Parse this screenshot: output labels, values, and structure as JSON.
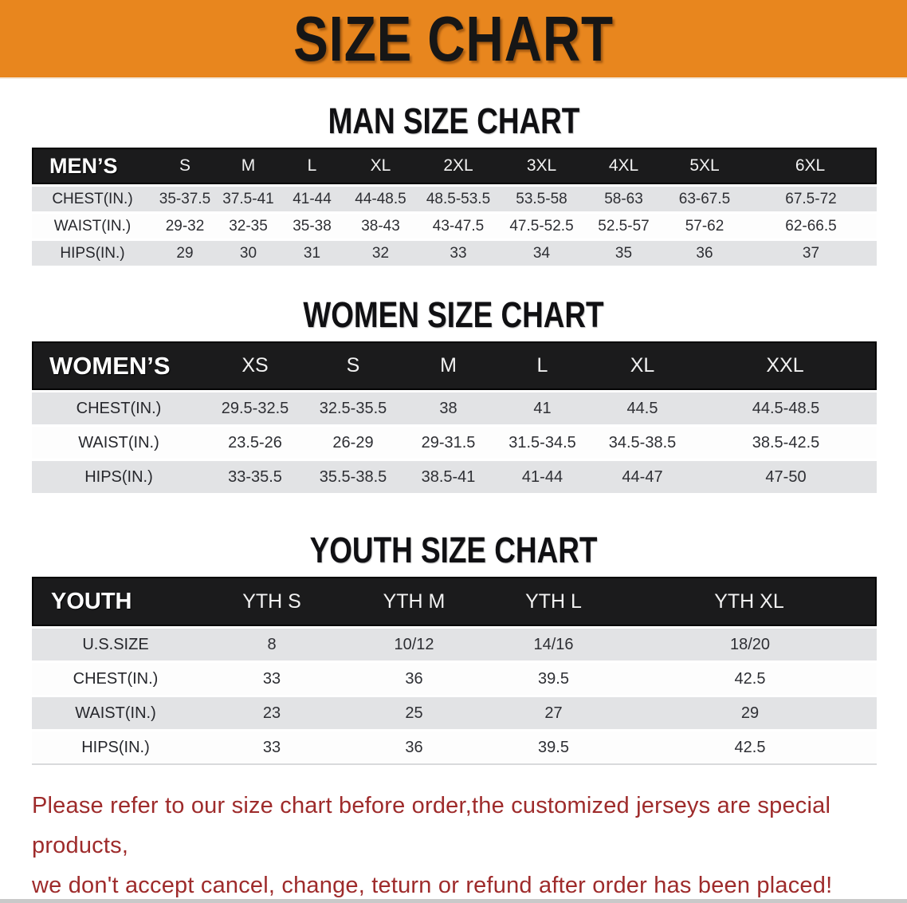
{
  "banner": {
    "title": "SIZE CHART"
  },
  "colors": {
    "banner_bg": "#e8861e",
    "header_bar": "#1b1b1c",
    "row_shade": "#e2e3e5",
    "row_plain": "#fdfdfd",
    "disclaimer_red": "#9e2b2b"
  },
  "sections": [
    {
      "heading": "MAN SIZE CHART",
      "table": {
        "label": "MEN’S",
        "columns": [
          "S",
          "M",
          "L",
          "XL",
          "2XL",
          "3XL",
          "4XL",
          "5XL",
          "6XL"
        ],
        "rows": [
          {
            "label": "CHEST(IN.)",
            "values": [
              "35-37.5",
              "37.5-41",
              "41-44",
              "44-48.5",
              "48.5-53.5",
              "53.5-58",
              "58-63",
              "63-67.5",
              "67.5-72"
            ]
          },
          {
            "label": "WAIST(IN.)",
            "values": [
              "29-32",
              "32-35",
              "35-38",
              "38-43",
              "43-47.5",
              "47.5-52.5",
              "52.5-57",
              "57-62",
              "62-66.5"
            ]
          },
          {
            "label": "HIPS(IN.)",
            "values": [
              "29",
              "30",
              "31",
              "32",
              "33",
              "34",
              "35",
              "36",
              "37"
            ]
          }
        ]
      }
    },
    {
      "heading": "WOMEN SIZE CHART",
      "table": {
        "label": "WOMEN’S",
        "columns": [
          "XS",
          "S",
          "M",
          "L",
          "XL",
          "XXL"
        ],
        "rows": [
          {
            "label": "CHEST(IN.)",
            "values": [
              "29.5-32.5",
              "32.5-35.5",
              "38",
              "41",
              "44.5",
              "44.5-48.5"
            ]
          },
          {
            "label": "WAIST(IN.)",
            "values": [
              "23.5-26",
              "26-29",
              "29-31.5",
              "31.5-34.5",
              "34.5-38.5",
              "38.5-42.5"
            ]
          },
          {
            "label": "HIPS(IN.)",
            "values": [
              "33-35.5",
              "35.5-38.5",
              "38.5-41",
              "41-44",
              "44-47",
              "47-50"
            ]
          }
        ]
      }
    },
    {
      "heading": "YOUTH SIZE CHART",
      "table": {
        "label": "YOUTH",
        "columns": [
          "YTH S",
          "YTH M",
          "YTH L",
          "YTH XL"
        ],
        "rows": [
          {
            "label": "U.S.SIZE",
            "values": [
              "8",
              "10/12",
              "14/16",
              "18/20"
            ]
          },
          {
            "label": "CHEST(IN.)",
            "values": [
              "33",
              "36",
              "39.5",
              "42.5"
            ]
          },
          {
            "label": "WAIST(IN.)",
            "values": [
              "23",
              "25",
              "27",
              "29"
            ]
          },
          {
            "label": "HIPS(IN.)",
            "values": [
              "33",
              "36",
              "39.5",
              "42.5"
            ]
          }
        ]
      }
    }
  ],
  "footer": {
    "line1": "Please refer to our size chart before order,the customized jerseys are special products,",
    "line2": "we don't accept cancel, change, teturn or refund after order has been placed!"
  }
}
